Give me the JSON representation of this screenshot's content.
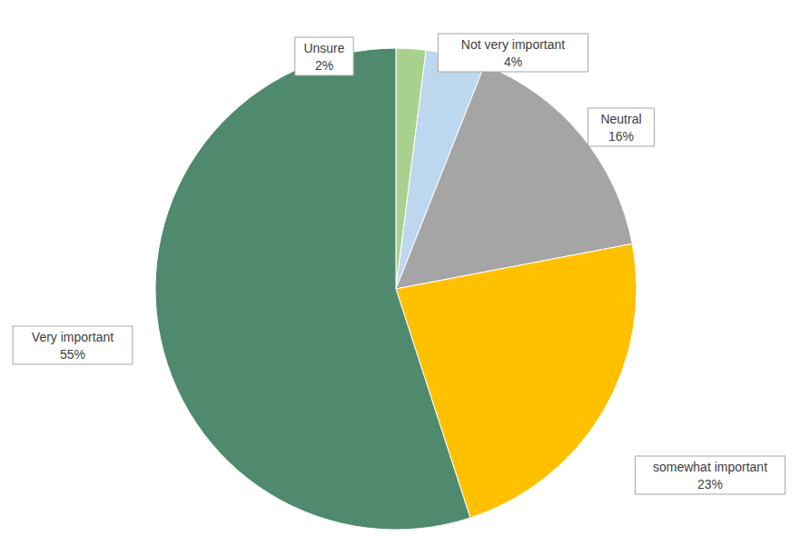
{
  "chart_data": {
    "type": "pie",
    "categories": [
      "Unsure",
      "Not very important",
      "Neutral",
      "somewhat important",
      "Very important"
    ],
    "values": [
      2,
      4,
      16,
      23,
      55
    ],
    "value_labels": [
      "2%",
      "4%",
      "16%",
      "23%",
      "55%"
    ],
    "colors": [
      "#a9d18e",
      "#bdd7ee",
      "#a5a5a5",
      "#ffc000",
      "#4f8a6e"
    ],
    "data_labels": true
  }
}
